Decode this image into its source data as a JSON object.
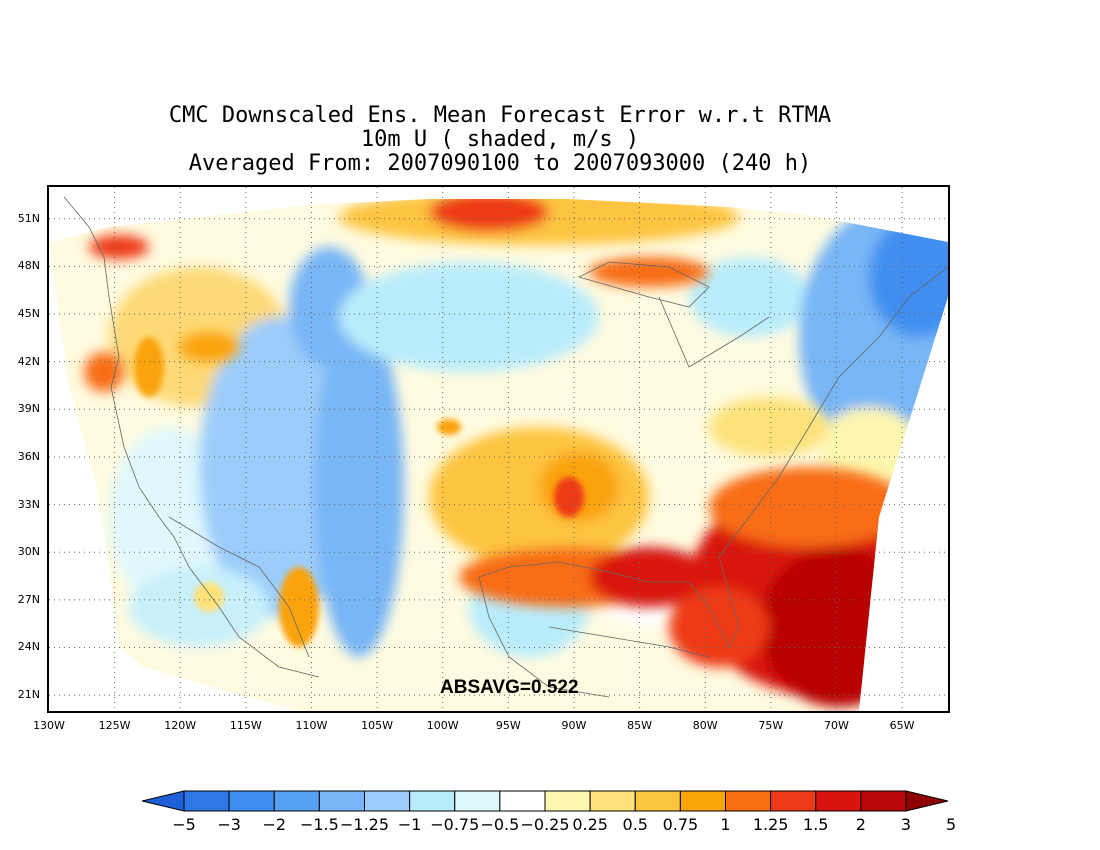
{
  "title": {
    "line1": "CMC Downscaled Ens. Mean Forecast Error w.r.t RTMA",
    "line2": "10m U ( shaded, m/s )",
    "line3": "Averaged From: 2007090100 to 2007093000 (240 h)"
  },
  "annotation": "ABSAVG=0.522",
  "map": {
    "lat_labels": [
      "51N",
      "48N",
      "45N",
      "42N",
      "39N",
      "36N",
      "33N",
      "30N",
      "27N",
      "24N",
      "21N"
    ],
    "lon_labels": [
      "130W",
      "125W",
      "120W",
      "115W",
      "110W",
      "105W",
      "100W",
      "95W",
      "90W",
      "85W",
      "80W",
      "75W",
      "70W",
      "65W"
    ],
    "lat_values": [
      51,
      48,
      45,
      42,
      39,
      36,
      33,
      30,
      27,
      24,
      21
    ],
    "lon_values": [
      -130,
      -125,
      -120,
      -115,
      -110,
      -105,
      -100,
      -95,
      -90,
      -85,
      -80,
      -75,
      -70,
      -65
    ],
    "lat_range": [
      20,
      53
    ],
    "lon_range": [
      -130,
      -61.5
    ],
    "grid": "dotted"
  },
  "colorbar": {
    "colors": [
      "#1f5fd8",
      "#2e78e6",
      "#3f8ff0",
      "#56a2f2",
      "#78b6f6",
      "#9ccdfa",
      "#b9ecfb",
      "#def9fb",
      "#ffffff",
      "#fdf6b0",
      "#fde27a",
      "#fdc43f",
      "#fba30b",
      "#f86d12",
      "#ee3a16",
      "#d91410",
      "#b90606",
      "#8f0000"
    ],
    "labels": [
      "−5",
      "−3",
      "−2",
      "−1.5",
      "−1.25",
      "−1",
      "−0.75",
      "−0.5",
      "−0.25",
      "0.25",
      "0.5",
      "0.75",
      "1",
      "1.25",
      "1.5",
      "2",
      "3",
      "5"
    ]
  }
}
